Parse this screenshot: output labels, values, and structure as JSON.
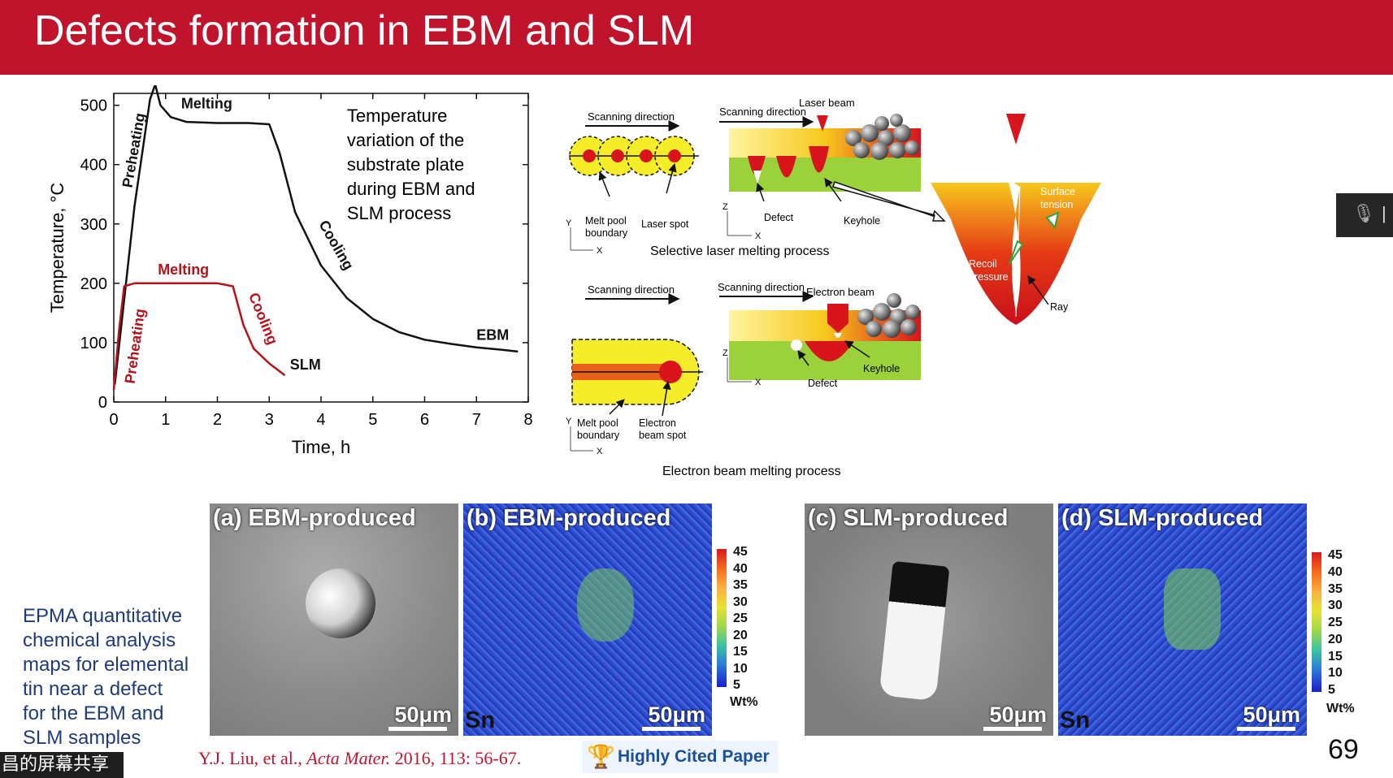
{
  "slide": {
    "title": "Defects formation in EBM and SLM",
    "page_number": "69",
    "accent_color": "#c0142d"
  },
  "chart_data": {
    "type": "line",
    "xlabel": "Time, h",
    "ylabel": "Temperature, °C",
    "xlim": [
      0,
      8
    ],
    "ylim": [
      0,
      520
    ],
    "x_ticks": [
      "0",
      "1",
      "2",
      "3",
      "4",
      "5",
      "6",
      "7",
      "8"
    ],
    "y_ticks": [
      "0",
      "100",
      "200",
      "300",
      "400",
      "500"
    ],
    "annotation": "Temperature variation of the substrate plate during EBM and SLM process",
    "annotation_lines": [
      "Temperature",
      "variation of the",
      "substrate plate",
      "during EBM and",
      "SLM process"
    ],
    "series": [
      {
        "name": "EBM",
        "color": "#111111",
        "x": [
          0.02,
          0.4,
          0.7,
          0.8,
          0.9,
          1.1,
          1.4,
          2.0,
          2.6,
          3.0,
          3.2,
          3.5,
          4.0,
          4.5,
          5.0,
          5.5,
          6.0,
          6.5,
          7.0,
          7.5,
          7.8
        ],
        "y": [
          30,
          330,
          510,
          535,
          500,
          480,
          472,
          470,
          470,
          468,
          420,
          320,
          230,
          175,
          140,
          118,
          105,
          98,
          92,
          88,
          85
        ]
      },
      {
        "name": "SLM",
        "color": "#b5121b",
        "x": [
          0.0,
          0.1,
          0.2,
          0.4,
          1.0,
          1.5,
          2.0,
          2.3,
          2.5,
          2.7,
          3.0,
          3.3
        ],
        "y": [
          20,
          120,
          195,
          200,
          200,
          200,
          200,
          195,
          130,
          90,
          65,
          45
        ]
      }
    ],
    "curve_labels": {
      "ebm_melting": "Melting",
      "ebm_preheating": "Preheating",
      "ebm_cooling": "Cooling",
      "ebm_tag": "EBM",
      "slm_melting": "Melting",
      "slm_preheating": "Preheating",
      "slm_cooling": "Cooling",
      "slm_tag": "SLM"
    }
  },
  "diagram": {
    "slm": {
      "scan_dir_left": "Scanning direction",
      "scan_dir_mid": "Scanning direction",
      "laser_beam": "Laser beam",
      "melt_pool_boundary_1": "Melt pool",
      "melt_pool_boundary_2": "boundary",
      "laser_spot": "Laser spot",
      "defect": "Defect",
      "keyhole": "Keyhole",
      "axis_y": "Y",
      "axis_x": "X",
      "axis_z": "Z",
      "process_caption": "Selective laser melting process"
    },
    "zoom": {
      "surface_tension_1": "Surface",
      "surface_tension_2": "tension",
      "recoil_pressure_1": "Recoil",
      "recoil_pressure_2": "pressure",
      "ray": "Ray"
    },
    "ebm": {
      "scan_dir_left": "Scanning direction",
      "scan_dir_mid": "Scanning direction",
      "electron_beam": "Electron beam",
      "melt_pool_boundary_1": "Melt pool",
      "melt_pool_boundary_2": "boundary",
      "electron_beam_spot_1": "Electron",
      "electron_beam_spot_2": "beam spot",
      "defect": "Defect",
      "keyhole": "Keyhole",
      "axis_y": "Y",
      "axis_x": "X",
      "axis_z": "Z",
      "process_caption": "Electron beam melting process"
    }
  },
  "micrographs": [
    {
      "label": "(a) EBM-produced",
      "scale": "50μm",
      "element": ""
    },
    {
      "label": "(b) EBM-produced",
      "scale": "50μm",
      "element": "Sn"
    },
    {
      "label": "(c) SLM-produced",
      "scale": "50μm",
      "element": ""
    },
    {
      "label": "(d) SLM-produced",
      "scale": "50μm",
      "element": "Sn"
    }
  ],
  "colorbar": {
    "ticks": [
      "45",
      "40",
      "35",
      "30",
      "25",
      "20",
      "15",
      "10",
      "5"
    ],
    "unit": "Wt%"
  },
  "caption_lines": [
    "EPMA quantitative",
    "chemical analysis",
    "maps for elemental",
    "tin near a defect",
    "for the EBM and",
    "SLM samples"
  ],
  "reference": {
    "authors": "Y.J. Liu, et al., ",
    "journal": "Acta Mater.",
    "details": " 2016, 113: 56-67."
  },
  "badge": {
    "label": "Highly Cited Paper",
    "icon": "trophy-icon"
  },
  "screen_share_label": "昌的屏幕共享",
  "mic_icon": "mic-muted-icon"
}
